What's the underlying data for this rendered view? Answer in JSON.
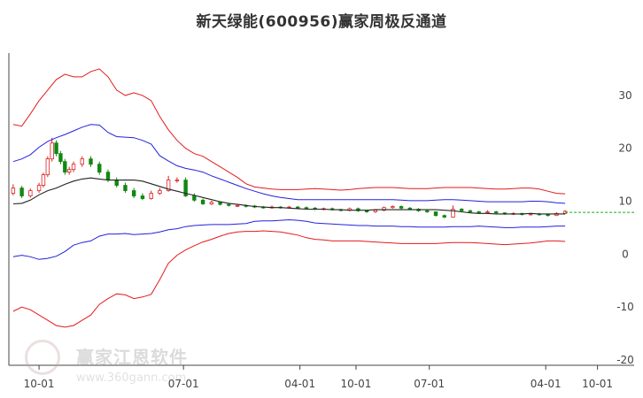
{
  "page": {
    "title": "新天绿能(600956)赢家周极反通道"
  },
  "watermark": {
    "brand": "赢家江恩软件",
    "url": "www.360gann.com"
  },
  "colors": {
    "upper_outer": "#e41a1c",
    "upper_inner": "#2222dd",
    "middle": "#222222",
    "lower_inner": "#2222dd",
    "lower_outer": "#e41a1c",
    "candle_up": "#dd2222",
    "candle_down": "#118811",
    "last_price_line": "#11aa11"
  },
  "chart_data": {
    "type": "line",
    "title": "新天绿能(600956)赢家周极反通道",
    "y_ticks": [
      30,
      20,
      10,
      0,
      -10,
      -20
    ],
    "ylim": [
      -21,
      38
    ],
    "x_ticks": [
      "10-01",
      "07-01",
      "04-01",
      "10-01",
      "07-01",
      "04-01",
      "10-01"
    ],
    "x_tick_positions": [
      0,
      33.5,
      60.5,
      73.5,
      90.5,
      117.5,
      129.5
    ],
    "xlim": [
      -7,
      138
    ],
    "grid": false,
    "legend": "none",
    "x": [
      -6,
      -4,
      -2,
      0,
      2,
      4,
      6,
      8,
      10,
      12,
      14,
      16,
      18,
      20,
      22,
      24,
      26,
      28,
      30,
      32,
      34,
      36,
      38,
      40,
      42,
      44,
      46,
      48,
      50,
      52,
      54,
      56,
      58,
      60,
      62,
      64,
      66,
      68,
      70,
      72,
      74,
      76,
      78,
      80,
      82,
      84,
      86,
      88,
      90,
      92,
      94,
      96,
      98,
      100,
      102,
      104,
      106,
      108,
      110,
      112,
      114,
      116,
      118,
      120,
      122
    ],
    "series": [
      {
        "name": "",
        "role": "upper_outer",
        "values": [
          24.5,
          24.2,
          26.5,
          29,
          31,
          33,
          34,
          33.5,
          33.5,
          34.5,
          35,
          33.5,
          31,
          30,
          30.5,
          30,
          29,
          26,
          23.5,
          21.5,
          20,
          19,
          18.5,
          17.5,
          16.5,
          15.5,
          14.5,
          13.3,
          12.7,
          12.5,
          12.3,
          12.2,
          12.2,
          12.2,
          12.3,
          12.4,
          12.3,
          12.2,
          12.1,
          12.2,
          12.4,
          12.5,
          12.6,
          12.6,
          12.6,
          12.5,
          12.4,
          12.4,
          12.4,
          12.5,
          12.6,
          12.6,
          12.6,
          12.6,
          12.5,
          12.4,
          12.3,
          12.3,
          12.4,
          12.5,
          12.5,
          12.3,
          11.9,
          11.5,
          11.4
        ]
      },
      {
        "name": "",
        "role": "upper_inner",
        "values": [
          17.5,
          18,
          18.8,
          20.2,
          21.3,
          22,
          22.6,
          23.3,
          24,
          24.5,
          24.4,
          23,
          22.2,
          22.1,
          22,
          21.5,
          20.8,
          18.6,
          17.6,
          16.7,
          16.2,
          15.9,
          15.5,
          14.8,
          14.2,
          13.6,
          13,
          12.4,
          11.9,
          11.4,
          11,
          10.7,
          10.5,
          10.3,
          10.3,
          10.3,
          10.3,
          10.3,
          10.3,
          10.3,
          10.3,
          10.3,
          10.3,
          10.3,
          10.3,
          10.2,
          10.1,
          10.1,
          10.1,
          10.2,
          10.3,
          10.3,
          10.2,
          10.1,
          10,
          9.9,
          9.9,
          9.9,
          9.9,
          9.9,
          10,
          10,
          9.9,
          9.7,
          9.6
        ]
      },
      {
        "name": "",
        "role": "middle",
        "values": [
          9.5,
          9.6,
          10.2,
          11.2,
          12,
          12.5,
          13.2,
          13.8,
          14.2,
          14.4,
          14.2,
          14,
          14,
          14,
          14,
          13.8,
          13.3,
          12.8,
          12.3,
          11.9,
          11.5,
          11.1,
          10.7,
          10.3,
          9.9,
          9.6,
          9.4,
          9.2,
          9,
          8.9,
          8.8,
          8.8,
          8.7,
          8.6,
          8.5,
          8.5,
          8.5,
          8.4,
          8.4,
          8.3,
          8.3,
          8.3,
          8.4,
          8.4,
          8.4,
          8.4,
          8.4,
          8.4,
          8.4,
          8.4,
          8.3,
          8.2,
          8,
          7.8,
          7.7,
          7.7,
          7.6,
          7.6,
          7.6,
          7.6,
          7.7,
          7.6,
          7.6,
          7.6,
          7.6
        ]
      },
      {
        "name": "",
        "role": "lower_inner",
        "values": [
          -0.5,
          -0.2,
          -0.5,
          -1,
          -0.8,
          -0.4,
          0.5,
          1.7,
          2.2,
          2.5,
          3.4,
          3.8,
          3.8,
          3.9,
          3.7,
          3.8,
          3.9,
          4.2,
          4.6,
          4.8,
          5.2,
          5.4,
          5.5,
          5.6,
          5.6,
          5.6,
          5.7,
          5.8,
          6.2,
          6.3,
          6.3,
          6.4,
          6.5,
          6.4,
          6.2,
          5.9,
          5.8,
          5.7,
          5.6,
          5.5,
          5.4,
          5.4,
          5.3,
          5.3,
          5.3,
          5.2,
          5.2,
          5.1,
          5.1,
          5.1,
          5.1,
          5.2,
          5.2,
          5.2,
          5.3,
          5.2,
          5.1,
          5,
          5,
          5.1,
          5.1,
          5.1,
          5.2,
          5.3,
          5.3
        ]
      },
      {
        "name": "",
        "role": "lower_outer",
        "values": [
          -10.8,
          -10,
          -10.5,
          -11.5,
          -12.5,
          -13.5,
          -13.8,
          -13.5,
          -12.5,
          -11.5,
          -9.5,
          -8.4,
          -7.5,
          -7.7,
          -8.4,
          -8.1,
          -7.6,
          -4.8,
          -1.7,
          -0.2,
          0.8,
          1.6,
          2.3,
          2.8,
          3.4,
          3.9,
          4.2,
          4.3,
          4.3,
          4.4,
          4.3,
          4.2,
          3.9,
          3.6,
          3.1,
          2.8,
          2.7,
          2.5,
          2.5,
          2.5,
          2.5,
          2.4,
          2.3,
          2.2,
          2.1,
          2,
          2,
          2,
          2,
          2,
          2.1,
          2.2,
          2.2,
          2.2,
          2.1,
          2,
          1.9,
          1.8,
          1.9,
          2,
          2.1,
          2.3,
          2.5,
          2.5,
          2.4
        ]
      }
    ],
    "candles": {
      "x": [
        -6,
        -4,
        -2,
        0,
        1,
        2,
        3,
        4,
        5,
        6,
        7,
        8,
        10,
        12,
        14,
        16,
        18,
        20,
        22,
        24,
        26,
        28,
        30,
        32,
        34,
        36,
        38,
        40,
        42,
        44,
        46,
        48,
        50,
        52,
        54,
        56,
        58,
        60,
        62,
        64,
        66,
        68,
        70,
        72,
        74,
        76,
        78,
        80,
        82,
        84,
        86,
        88,
        90,
        92,
        94,
        96,
        98,
        100,
        102,
        104,
        106,
        108,
        110,
        112,
        114,
        116,
        118,
        120,
        122
      ],
      "open": [
        11.5,
        12.5,
        11,
        12,
        13,
        15,
        18,
        21,
        19,
        17.5,
        15.5,
        16,
        17,
        18,
        17,
        15.5,
        14,
        13,
        12,
        11,
        10.5,
        11.5,
        12,
        14,
        14,
        11,
        10.2,
        9.5,
        9.8,
        9.4,
        9.2,
        9.2,
        9.1,
        8.9,
        8.8,
        8.9,
        8.8,
        8.9,
        8.8,
        8.7,
        8.5,
        8.6,
        8.4,
        8.3,
        8.6,
        8.2,
        8,
        8.3,
        8.8,
        9,
        8.7,
        8.5,
        8.2,
        8,
        7.3,
        7,
        8.5,
        8.2,
        8,
        7.9,
        8,
        7.8,
        7.6,
        7.7,
        7.5,
        7.6,
        7.5,
        7.3,
        7.7
      ],
      "close": [
        12.5,
        11,
        12,
        13,
        15,
        18,
        21,
        19,
        17.5,
        15.5,
        16,
        17,
        18,
        17,
        15.5,
        14,
        13,
        12,
        11,
        10.5,
        11.5,
        12,
        14,
        14,
        11,
        10.2,
        9.5,
        9.8,
        9.4,
        9.2,
        9.2,
        9.1,
        8.9,
        8.8,
        8.9,
        8.8,
        8.9,
        8.8,
        8.7,
        8.5,
        8.6,
        8.4,
        8.3,
        8.6,
        8.2,
        8,
        8.3,
        8.8,
        9,
        8.7,
        8.5,
        8.2,
        8,
        7.3,
        7,
        8.5,
        8.2,
        8,
        7.9,
        8,
        7.8,
        7.6,
        7.7,
        7.5,
        7.6,
        7.5,
        7.3,
        7.7,
        8.1
      ],
      "high": [
        13.2,
        12.9,
        12.4,
        13.5,
        15.4,
        18.5,
        22,
        21.5,
        19.5,
        18,
        16.5,
        17.5,
        18.5,
        18.5,
        17.5,
        16,
        14.5,
        13.5,
        12.5,
        11.5,
        12,
        12.5,
        14.8,
        14.5,
        14.5,
        11.5,
        10.5,
        10.1,
        9.9,
        9.6,
        9.5,
        9.4,
        9.3,
        9.1,
        9.2,
        9.1,
        9.1,
        9.1,
        9,
        8.9,
        8.8,
        8.8,
        8.6,
        8.8,
        8.8,
        8.4,
        8.5,
        9,
        9.2,
        9.2,
        8.9,
        8.7,
        8.5,
        8.1,
        7.5,
        9.2,
        8.7,
        8.4,
        8.2,
        8.3,
        8.2,
        7.9,
        7.9,
        7.8,
        7.8,
        7.8,
        7.6,
        7.9,
        8.3
      ],
      "low": [
        11.1,
        10.6,
        10.7,
        11.6,
        12.6,
        14.6,
        17.5,
        18.5,
        17,
        15,
        15,
        15.5,
        16.5,
        16.5,
        15,
        13.6,
        12.6,
        11.6,
        10.6,
        10.2,
        10.3,
        11.2,
        11.8,
        13.5,
        10.8,
        9.9,
        9.3,
        9.3,
        9.2,
        9,
        8.9,
        8.8,
        8.7,
        8.6,
        8.6,
        8.6,
        8.6,
        8.6,
        8.5,
        8.3,
        8.3,
        8.2,
        8.1,
        8.1,
        8,
        7.8,
        7.8,
        8.1,
        8.6,
        8.5,
        8.3,
        8,
        7.8,
        7.1,
        6.8,
        6.9,
        8,
        7.8,
        7.7,
        7.7,
        7.5,
        7.4,
        7.4,
        7.3,
        7.3,
        7.3,
        7.1,
        7.2,
        7.6
      ]
    },
    "last_price": 7.9
  }
}
